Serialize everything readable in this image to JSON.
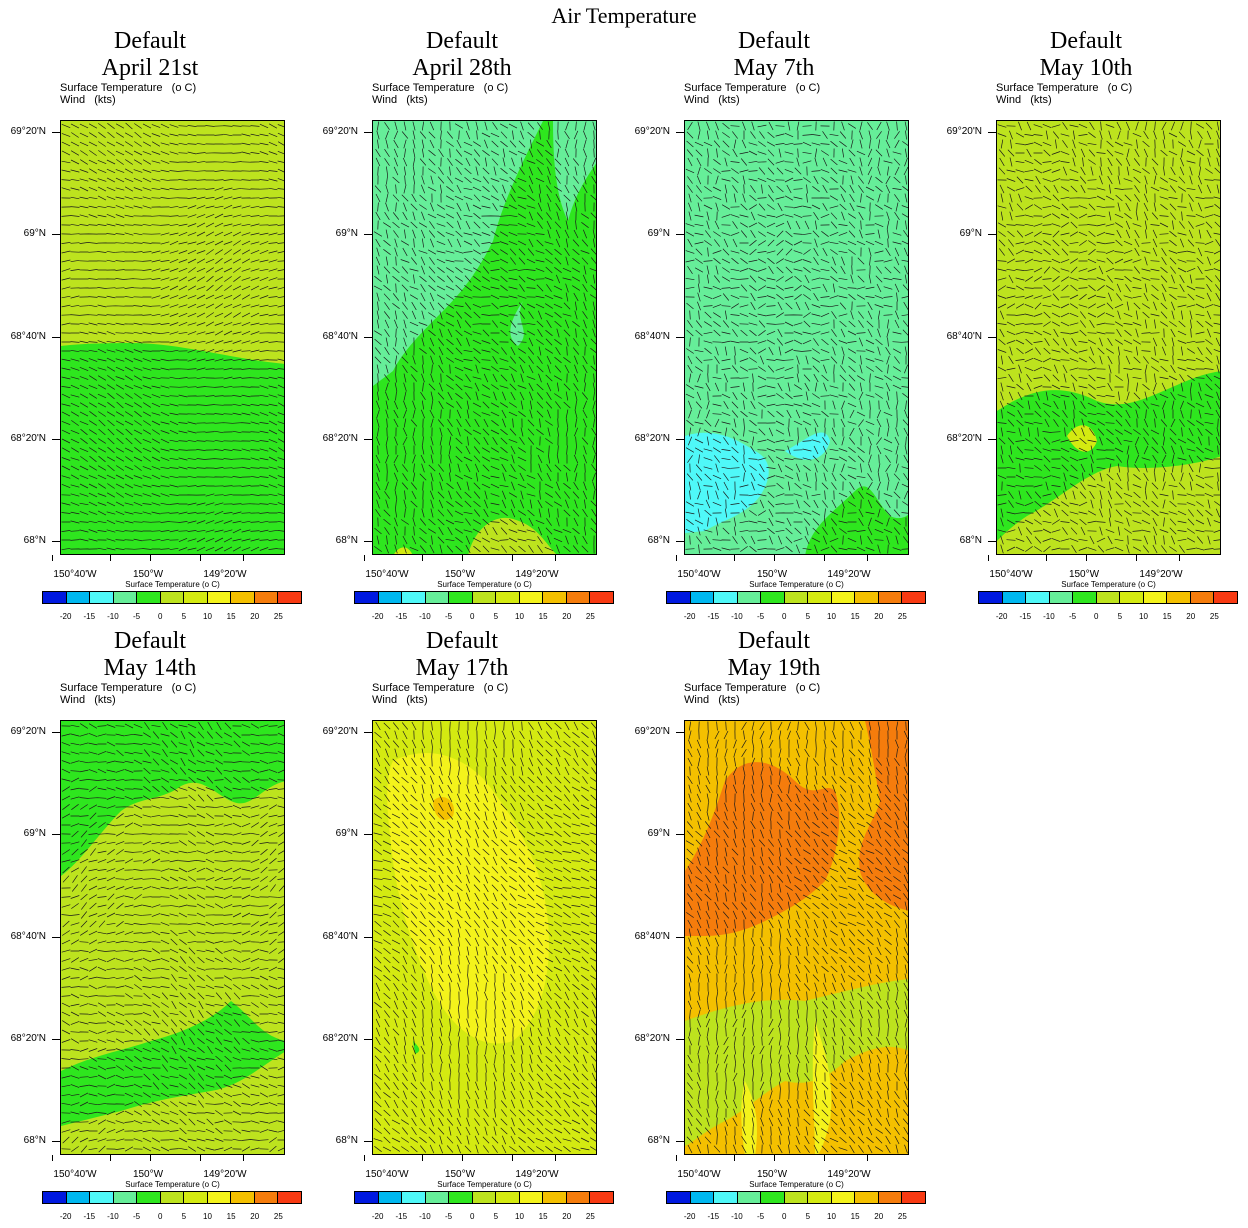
{
  "figure_title": "Air Temperature",
  "subtitle_line1": "Surface Temperature   (o C)",
  "subtitle_line2": "Wind   (kts)",
  "colorbar_title": "Surface Temperature  (o C)",
  "colorbar_levels": [
    "-20",
    "-15",
    "-10",
    "-5",
    "0",
    "5",
    "10",
    "15",
    "20",
    "25"
  ],
  "colorbar_colors": [
    "#0019e0",
    "#00b8f0",
    "#4ff8f8",
    "#66ee99",
    "#2ee61e",
    "#bde31e",
    "#d4ea11",
    "#f4f31b",
    "#f4c000",
    "#f57c0c",
    "#f83a12"
  ],
  "lat_labels": [
    "69°20'N",
    "69°N",
    "68°40'N",
    "68°20'N",
    "68°N"
  ],
  "lon_labels": [
    "150°40'W",
    "150°W",
    "149°20'W"
  ],
  "panels": [
    {
      "line1": "Default",
      "line2": "April 21st"
    },
    {
      "line1": "Default",
      "line2": "April 28th"
    },
    {
      "line1": "Default",
      "line2": "May 7th"
    },
    {
      "line1": "Default",
      "line2": "May 10th"
    },
    {
      "line1": "Default",
      "line2": "May 14th"
    },
    {
      "line1": "Default",
      "line2": "May 17th"
    },
    {
      "line1": "Default",
      "line2": "May 19th"
    }
  ]
}
